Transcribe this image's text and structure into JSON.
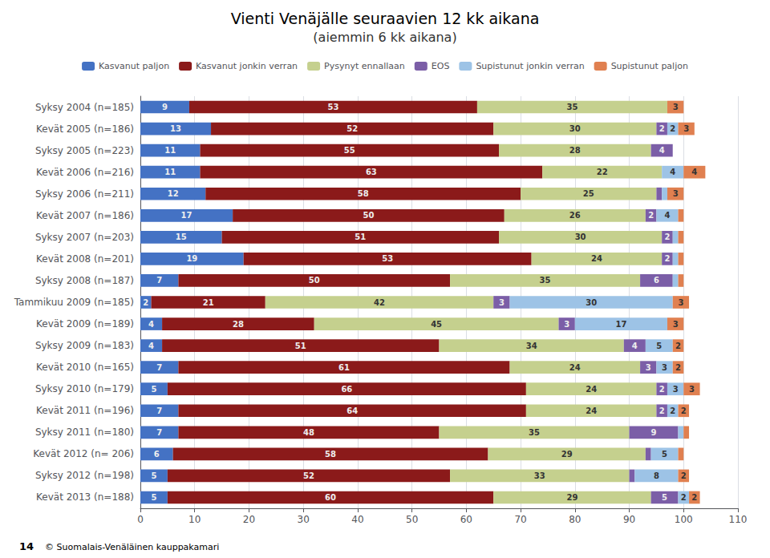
{
  "chart_data": {
    "type": "bar",
    "orientation": "horizontal",
    "stacked": true,
    "title": "Vienti Venäjälle seuraavien 12 kk aikana",
    "subtitle": "(aiemmin 6 kk aikana)",
    "annotations": [
      "14",
      "© Suomalais-Venäläinen kauppakamari"
    ],
    "categories": [
      "Syksy 2004 (n=185)",
      "Kevät 2005 (n=186)",
      "Syksy 2005 (n=223)",
      "Kevät 2006 (n=216)",
      "Syksy 2006 (n=211)",
      "Kevät 2007 (n=186)",
      "Syksy 2007 (n=203)",
      "Kevät 2008 (n=201)",
      "Syksy 2008 (n=187)",
      "Tammikuu 2009 (n=185)",
      "Kevät 2009 (n=189)",
      "Syksy 2009 (n=183)",
      "Kevät 2010 (n=165)",
      "Syksy 2010 (n=179)",
      "Kevät 2011 (n=196)",
      "Syksy 2011 (n=180)",
      "Kevät 2012 (n= 206)",
      "Syksy 2012 (n=198)",
      "Kevät 2013 (n=188)"
    ],
    "series": [
      {
        "name": "Kasvanut paljon",
        "color": "#4472C4",
        "values": [
          9,
          13,
          11,
          11,
          12,
          17,
          15,
          19,
          7,
          2,
          4,
          4,
          7,
          5,
          7,
          7,
          6,
          5,
          5
        ],
        "value_labels": [
          "9",
          "13",
          "11",
          "11",
          "12",
          "17",
          "15",
          "19",
          "7",
          "2",
          "4",
          "4",
          "7",
          "5",
          "7",
          "7",
          "6",
          "5",
          "5"
        ]
      },
      {
        "name": "Kasvanut jonkin verran",
        "color": "#8B1A1A",
        "values": [
          53,
          52,
          55,
          63,
          58,
          50,
          51,
          53,
          50,
          21,
          28,
          51,
          61,
          66,
          64,
          48,
          58,
          52,
          60
        ],
        "value_labels": [
          "53",
          "52",
          "55",
          "63",
          "58",
          "50",
          "51",
          "53",
          "50",
          "21",
          "28",
          "51",
          "61",
          "66",
          "64",
          "48",
          "58",
          "52",
          "60"
        ]
      },
      {
        "name": "Pysynyt ennallaan",
        "color": "#C5D08E",
        "values": [
          35,
          30,
          28,
          22,
          25,
          26,
          30,
          24,
          35,
          42,
          45,
          34,
          24,
          24,
          24,
          35,
          29,
          33,
          29
        ],
        "value_labels": [
          "35",
          "30",
          "28",
          "22",
          "25",
          "26",
          "30",
          "24",
          "35",
          "42",
          "45",
          "34",
          "24",
          "24",
          "24",
          "35",
          "29",
          "33",
          "29"
        ]
      },
      {
        "name": "EOS",
        "color": "#7B5EA7",
        "values": [
          0,
          2,
          4,
          0,
          1,
          2,
          2,
          2,
          6,
          3,
          3,
          4,
          3,
          2,
          2,
          9,
          1,
          1,
          5
        ],
        "value_labels": [
          null,
          "2",
          "4",
          null,
          null,
          "2",
          "2",
          "2",
          "6",
          "3",
          "3",
          "4",
          "3",
          "2",
          "2",
          "9",
          null,
          null,
          "5"
        ]
      },
      {
        "name": "Supistunut jonkin verran",
        "color": "#9DC3E6",
        "values": [
          0,
          2,
          0,
          4,
          1,
          4,
          1,
          1,
          1,
          30,
          17,
          5,
          3,
          3,
          2,
          1,
          5,
          8,
          2
        ],
        "value_labels": [
          null,
          "2",
          null,
          "4",
          null,
          "4",
          null,
          null,
          null,
          "30",
          "17",
          "5",
          "3",
          "3",
          "2",
          null,
          "5",
          "8",
          "2"
        ]
      },
      {
        "name": "Supistunut paljon",
        "color": "#E08050",
        "values": [
          3,
          3,
          0,
          4,
          3,
          1,
          1,
          1,
          1,
          3,
          3,
          2,
          2,
          3,
          2,
          1,
          1,
          2,
          2
        ],
        "value_labels": [
          "3",
          "3",
          null,
          "4",
          "3",
          null,
          null,
          null,
          null,
          "3",
          "3",
          "2",
          "2",
          "3",
          "2",
          null,
          null,
          "2",
          "2"
        ]
      }
    ],
    "xlim": [
      0,
      110
    ],
    "xticks": [
      0,
      10,
      20,
      30,
      40,
      50,
      60,
      70,
      80,
      90,
      100,
      110
    ],
    "grid": true,
    "legend": "top",
    "data_labels": true
  }
}
